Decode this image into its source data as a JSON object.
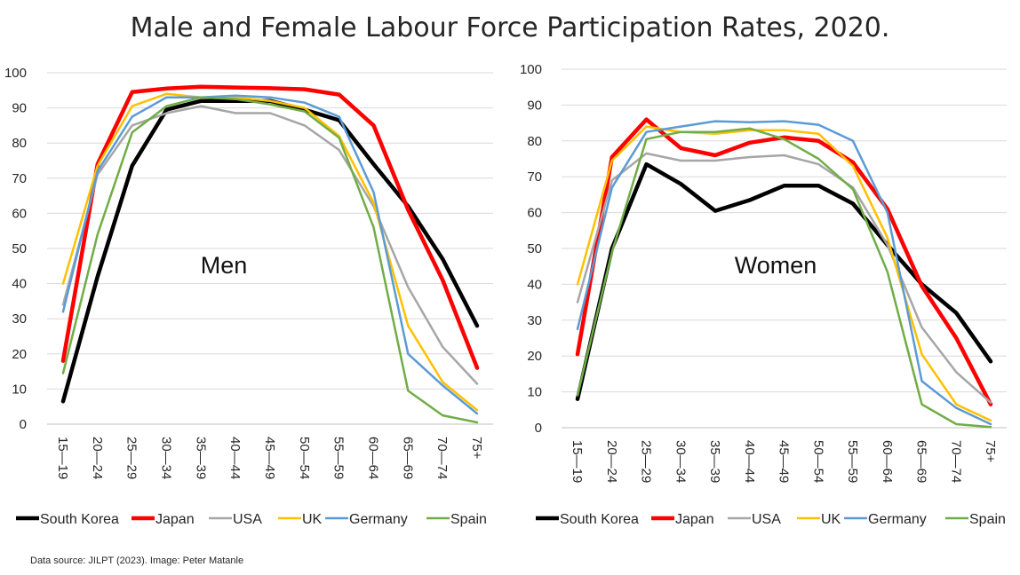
{
  "title": "Male and Female Labour Force Participation Rates, 2020.",
  "footer": "Data source: JILPT (2023). Image: Peter Matanle",
  "chart_data": [
    {
      "type": "line",
      "panel_label": "Men",
      "categories": [
        "15—19",
        "20—24",
        "25—29",
        "30—34",
        "35—39",
        "40—44",
        "45—49",
        "50—54",
        "55—59",
        "60—64",
        "65—69",
        "70—74",
        "75+"
      ],
      "ylim": [
        0,
        100
      ],
      "yticks": [
        0,
        10,
        20,
        30,
        40,
        50,
        60,
        70,
        80,
        90,
        100
      ],
      "series": [
        {
          "name": "South Korea",
          "color": "#000000",
          "values": [
            6.5,
            42,
            73.5,
            89.5,
            92,
            92,
            92,
            89.5,
            86.5,
            74,
            62,
            47,
            28
          ]
        },
        {
          "name": "Japan",
          "color": "#ff0000",
          "values": [
            18,
            74,
            94.5,
            95.5,
            96,
            95.8,
            95.6,
            95.3,
            93.8,
            85,
            61,
            41,
            16
          ]
        },
        {
          "name": "USA",
          "color": "#a6a6a6",
          "values": [
            34,
            71,
            85,
            88.5,
            90.5,
            88.5,
            88.5,
            85,
            78,
            62,
            39,
            22,
            11.5
          ]
        },
        {
          "name": "UK",
          "color": "#ffc000",
          "values": [
            40,
            73.5,
            90.5,
            94,
            93,
            93,
            92,
            90,
            82,
            63,
            28,
            12,
            4
          ]
        },
        {
          "name": "Germany",
          "color": "#5b9bd5",
          "values": [
            32,
            72,
            87.5,
            93,
            93,
            93.5,
            93,
            91.5,
            87.5,
            66,
            20,
            11,
            3
          ]
        },
        {
          "name": "Spain",
          "color": "#70ad47",
          "values": [
            14.5,
            54,
            83,
            90.5,
            93,
            92.5,
            91,
            89,
            81.5,
            56,
            9.5,
            2.5,
            0.5
          ]
        }
      ]
    },
    {
      "type": "line",
      "panel_label": "Women",
      "categories": [
        "15—19",
        "20—24",
        "25—29",
        "30—34",
        "35—39",
        "40—44",
        "45—49",
        "50—54",
        "55—59",
        "60—64",
        "65—69",
        "70—74",
        "75+"
      ],
      "ylim": [
        0,
        100
      ],
      "yticks": [
        0,
        10,
        20,
        30,
        40,
        50,
        60,
        70,
        80,
        90,
        100
      ],
      "series": [
        {
          "name": "South Korea",
          "color": "#000000",
          "values": [
            8,
            50,
            73.5,
            68,
            60.5,
            63.5,
            67.5,
            67.5,
            62.5,
            51,
            40,
            32,
            18.5
          ]
        },
        {
          "name": "Japan",
          "color": "#ff0000",
          "values": [
            20.5,
            75.5,
            86,
            78,
            76,
            79.5,
            81,
            80,
            74,
            61,
            39.5,
            25,
            6.5
          ]
        },
        {
          "name": "USA",
          "color": "#a6a6a6",
          "values": [
            35,
            69,
            76.5,
            74.5,
            74.5,
            75.5,
            76,
            73.5,
            67,
            51,
            28,
            15.5,
            7
          ]
        },
        {
          "name": "UK",
          "color": "#ffc000",
          "values": [
            40,
            74.5,
            84,
            82.5,
            82,
            83,
            83,
            82,
            73,
            53,
            20.5,
            6.5,
            2
          ]
        },
        {
          "name": "Germany",
          "color": "#5b9bd5",
          "values": [
            27.5,
            67,
            82.5,
            84,
            85.5,
            85.2,
            85.5,
            84.5,
            80,
            60,
            13,
            5.5,
            1
          ]
        },
        {
          "name": "Spain",
          "color": "#70ad47",
          "values": [
            9,
            49,
            80.5,
            82.5,
            82.5,
            83.5,
            80.5,
            75,
            66.5,
            43.5,
            6.5,
            1,
            0.2
          ]
        }
      ]
    }
  ]
}
